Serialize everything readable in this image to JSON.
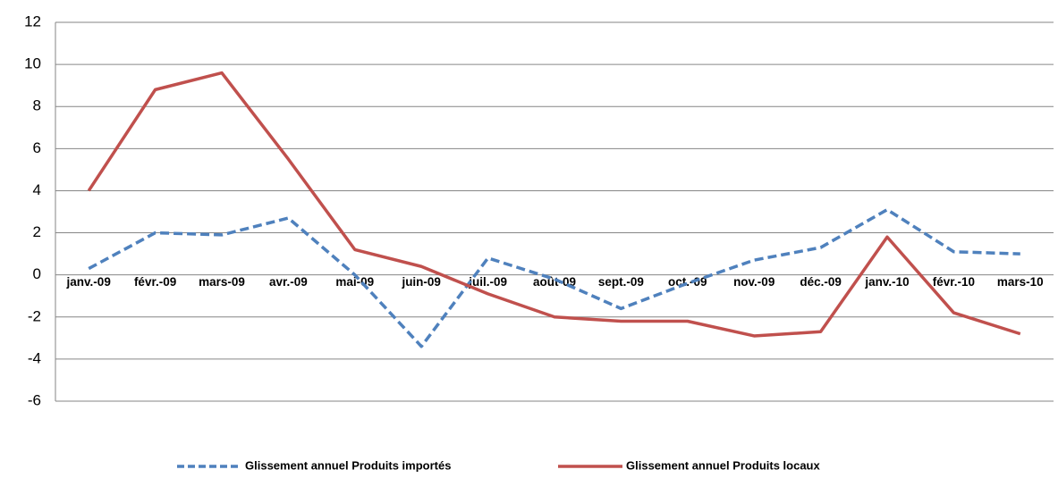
{
  "chart_data": {
    "type": "line",
    "categories": [
      "janv.-09",
      "févr.-09",
      "mars-09",
      "avr.-09",
      "mai-09",
      "juin-09",
      "juil.-09",
      "août-09",
      "sept.-09",
      "oct.-09",
      "nov.-09",
      "déc.-09",
      "janv.-10",
      "févr.-10",
      "mars-10"
    ],
    "series": [
      {
        "name": "Glissement annuel Produits importés",
        "color": "#4f81bd",
        "dash": true,
        "values": [
          0.3,
          2.0,
          1.9,
          2.7,
          0.0,
          -3.4,
          0.8,
          -0.2,
          -1.6,
          -0.4,
          0.7,
          1.3,
          3.1,
          1.1,
          1.0
        ]
      },
      {
        "name": "Glissement annuel Produits locaux",
        "color": "#c0504d",
        "dash": false,
        "values": [
          4.0,
          8.8,
          9.6,
          5.5,
          1.2,
          0.4,
          -0.9,
          -2.0,
          -2.2,
          -2.2,
          -2.9,
          -2.7,
          1.8,
          -1.8,
          -2.8
        ]
      }
    ],
    "ylim": [
      -6,
      12
    ],
    "yticks": [
      -6,
      -4,
      -2,
      0,
      2,
      4,
      6,
      8,
      10,
      12
    ],
    "grid": true,
    "legend": "bottom"
  }
}
